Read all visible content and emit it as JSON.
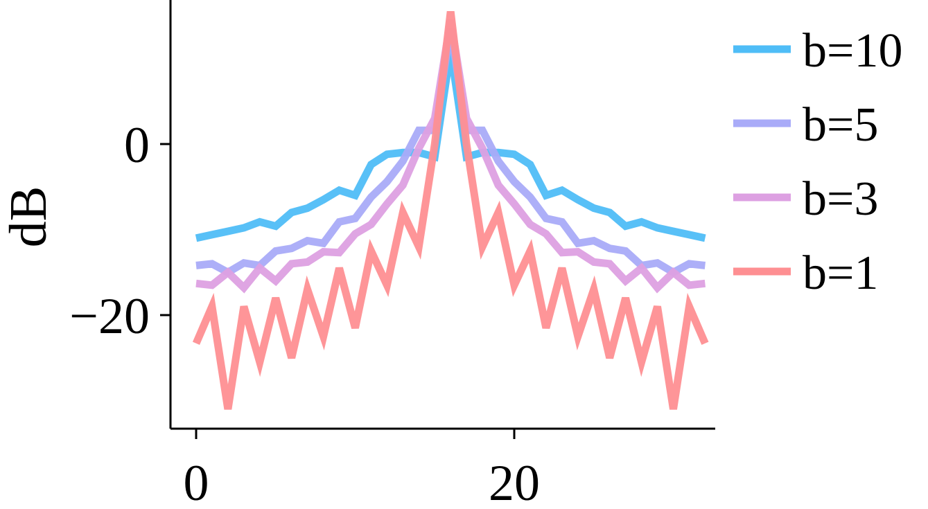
{
  "chart_data": {
    "type": "line",
    "title": "",
    "xlabel": "",
    "ylabel": "dB",
    "xlim": [
      -1.5,
      32.5
    ],
    "ylim": [
      -33.5,
      17.5
    ],
    "xticks": [
      0,
      20
    ],
    "yticks": [
      0,
      -20
    ],
    "xtick_labels": [
      "0",
      "20"
    ],
    "ytick_labels": [
      "0",
      "−20"
    ],
    "grid": false,
    "legend": {
      "position": "right"
    },
    "x": [
      0,
      1,
      2,
      3,
      4,
      5,
      6,
      7,
      8,
      9,
      10,
      11,
      12,
      13,
      14,
      15,
      16,
      17,
      18,
      19,
      20,
      21,
      22,
      23,
      24,
      25,
      26,
      27,
      28,
      29,
      30,
      31,
      32
    ],
    "series": [
      {
        "name": "b=10",
        "color": "#4fbdf7",
        "values": [
          -11.0,
          -10.6,
          -10.2,
          -9.8,
          -9.1,
          -9.6,
          -8.0,
          -7.5,
          -6.5,
          -5.4,
          -6.0,
          -2.4,
          -1.2,
          -1.0,
          -1.0,
          -1.5,
          11.0,
          -1.5,
          -1.0,
          -1.0,
          -1.2,
          -2.4,
          -6.0,
          -5.4,
          -6.5,
          -7.5,
          -8.0,
          -9.6,
          -9.1,
          -9.8,
          -10.2,
          -10.6,
          -11.0
        ]
      },
      {
        "name": "b=5",
        "color": "#a9abf8",
        "values": [
          -14.2,
          -14.0,
          -15.0,
          -13.9,
          -14.2,
          -12.5,
          -12.2,
          -11.3,
          -11.6,
          -9.1,
          -8.7,
          -6.2,
          -4.4,
          -2.0,
          1.6,
          1.6,
          13.5,
          1.6,
          1.6,
          -2.0,
          -4.4,
          -6.2,
          -8.7,
          -9.1,
          -11.6,
          -11.3,
          -12.2,
          -12.5,
          -14.2,
          -13.9,
          -15.0,
          -14.0,
          -14.2
        ]
      },
      {
        "name": "b=3",
        "color": "#dda0e2",
        "values": [
          -16.3,
          -16.5,
          -15.0,
          -16.8,
          -14.5,
          -16.0,
          -14.0,
          -13.8,
          -12.6,
          -12.7,
          -10.5,
          -9.4,
          -7.0,
          -4.8,
          -0.5,
          3.0,
          14.5,
          3.0,
          -0.5,
          -4.8,
          -7.0,
          -9.4,
          -10.5,
          -12.7,
          -12.6,
          -13.8,
          -14.0,
          -16.0,
          -14.5,
          -16.8,
          -15.0,
          -16.5,
          -16.3
        ]
      },
      {
        "name": "b=1",
        "color": "#fe8f92",
        "values": [
          -23.3,
          -19.0,
          -31.0,
          -19.0,
          -25.5,
          -18.0,
          -25.0,
          -17.0,
          -22.5,
          -14.5,
          -21.5,
          -12.5,
          -16.5,
          -8.0,
          -12.0,
          0.0,
          15.5,
          0.0,
          -12.0,
          -8.0,
          -16.5,
          -12.5,
          -21.5,
          -14.5,
          -22.5,
          -17.0,
          -25.0,
          -18.0,
          -25.5,
          -19.0,
          -31.0,
          -19.0,
          -23.3
        ]
      }
    ]
  }
}
